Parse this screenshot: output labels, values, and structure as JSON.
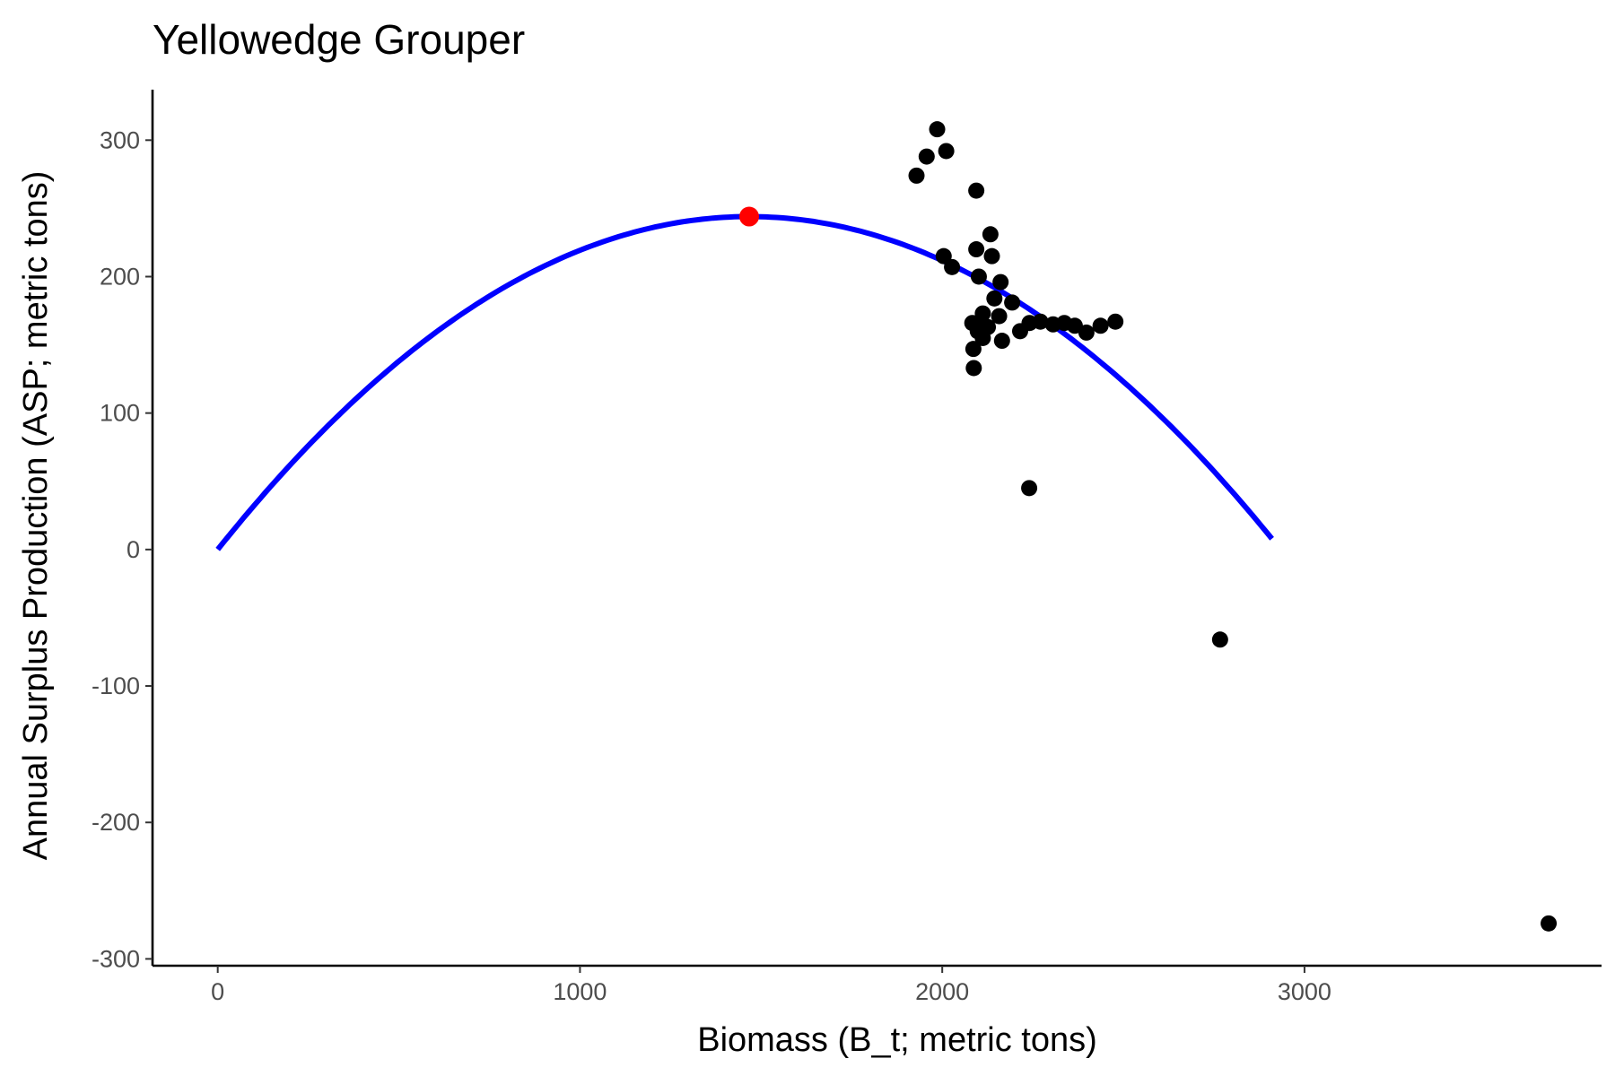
{
  "chart_data": {
    "type": "scatter",
    "title": "Yellowedge Grouper",
    "xlabel": "Biomass (B_t; metric tons)",
    "ylabel": "Annual Surplus Production (ASP; metric tons)",
    "xlim": [
      -180,
      3820
    ],
    "ylim": [
      -305,
      337
    ],
    "xticks": [
      0,
      1000,
      2000,
      3000
    ],
    "yticks": [
      -300,
      -200,
      -100,
      0,
      100,
      200,
      300
    ],
    "grid": false,
    "legend": "none",
    "series": [
      {
        "kind": "line",
        "color": "#0000FF",
        "curve": {
          "form": "parabola",
          "x0": 0,
          "x1": 2910,
          "peak_x": 1467,
          "peak_y": 244
        }
      },
      {
        "kind": "points",
        "color": "#000000",
        "points": [
          [
            1929,
            274
          ],
          [
            1957,
            288
          ],
          [
            1986,
            308
          ],
          [
            2011,
            292
          ],
          [
            2094,
            263
          ],
          [
            2133,
            231
          ],
          [
            2004,
            215
          ],
          [
            2027,
            207
          ],
          [
            2094,
            220
          ],
          [
            2137,
            215
          ],
          [
            2101,
            200
          ],
          [
            2161,
            196
          ],
          [
            2144,
            184
          ],
          [
            2193,
            181
          ],
          [
            2112,
            173
          ],
          [
            2157,
            171
          ],
          [
            2083,
            166
          ],
          [
            2098,
            160
          ],
          [
            2112,
            165
          ],
          [
            2126,
            163
          ],
          [
            2112,
            155
          ],
          [
            2165,
            153
          ],
          [
            2086,
            147
          ],
          [
            2087,
            133
          ],
          [
            2215,
            160
          ],
          [
            2241,
            166
          ],
          [
            2271,
            167
          ],
          [
            2306,
            165
          ],
          [
            2337,
            166
          ],
          [
            2366,
            164
          ],
          [
            2398,
            159
          ],
          [
            2437,
            164
          ],
          [
            2478,
            167
          ],
          [
            2240,
            45
          ],
          [
            2767,
            -66
          ],
          [
            3674,
            -274
          ]
        ]
      },
      {
        "kind": "highlight",
        "color": "#FF0000",
        "points": [
          [
            1467,
            244
          ]
        ]
      }
    ]
  }
}
